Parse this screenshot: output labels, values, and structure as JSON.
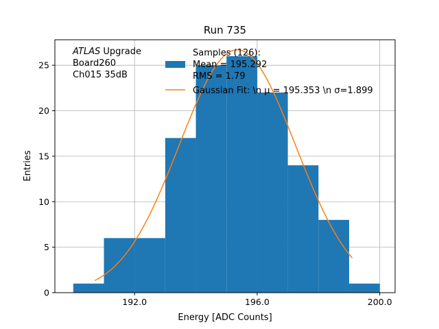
{
  "chart_data": {
    "type": "bar",
    "title": "Run 735",
    "xlabel": "Energy [ADC Counts]",
    "ylabel": "Entries",
    "xlim": [
      189.4,
      200.5
    ],
    "ylim": [
      0,
      27.8
    ],
    "grid": true,
    "bin_edges": [
      190,
      191,
      192,
      193,
      194,
      195,
      196,
      197,
      198,
      199,
      200
    ],
    "counts": [
      1,
      6,
      6,
      17,
      25,
      26,
      22,
      14,
      8,
      1
    ],
    "bar_color": "#1f77b4",
    "x_ticks": [
      192.0,
      196.0,
      200.0
    ],
    "x_tick_labels": [
      "192.0",
      "196.0",
      "200.0"
    ],
    "y_ticks": [
      0,
      5,
      10,
      15,
      20,
      25
    ],
    "y_tick_labels": [
      "0",
      "5",
      "10",
      "15",
      "20",
      "25"
    ],
    "fit": {
      "name": "Gaussian Fit",
      "mu": 195.353,
      "sigma": 1.899,
      "amplitude": 26.7,
      "x_range": [
        190.7,
        199.1
      ],
      "color": "#ff7f0e"
    },
    "legend": {
      "placement": "top-right",
      "entries": [
        {
          "kind": "patch",
          "lines": [
            "Samples (126):",
            " Mean = 195.292",
            " RMS = 1.79"
          ]
        },
        {
          "kind": "line",
          "lines": [
            "Gaussian Fit: \\n μ = 195.353 \\n σ=1.899"
          ]
        }
      ]
    },
    "annotation": {
      "lines": [
        {
          "italic": "ATLAS",
          "rest": " Upgrade"
        },
        {
          "italic": "",
          "rest": " Board260"
        },
        {
          "italic": "",
          "rest": " Ch015 35dB"
        }
      ]
    }
  }
}
